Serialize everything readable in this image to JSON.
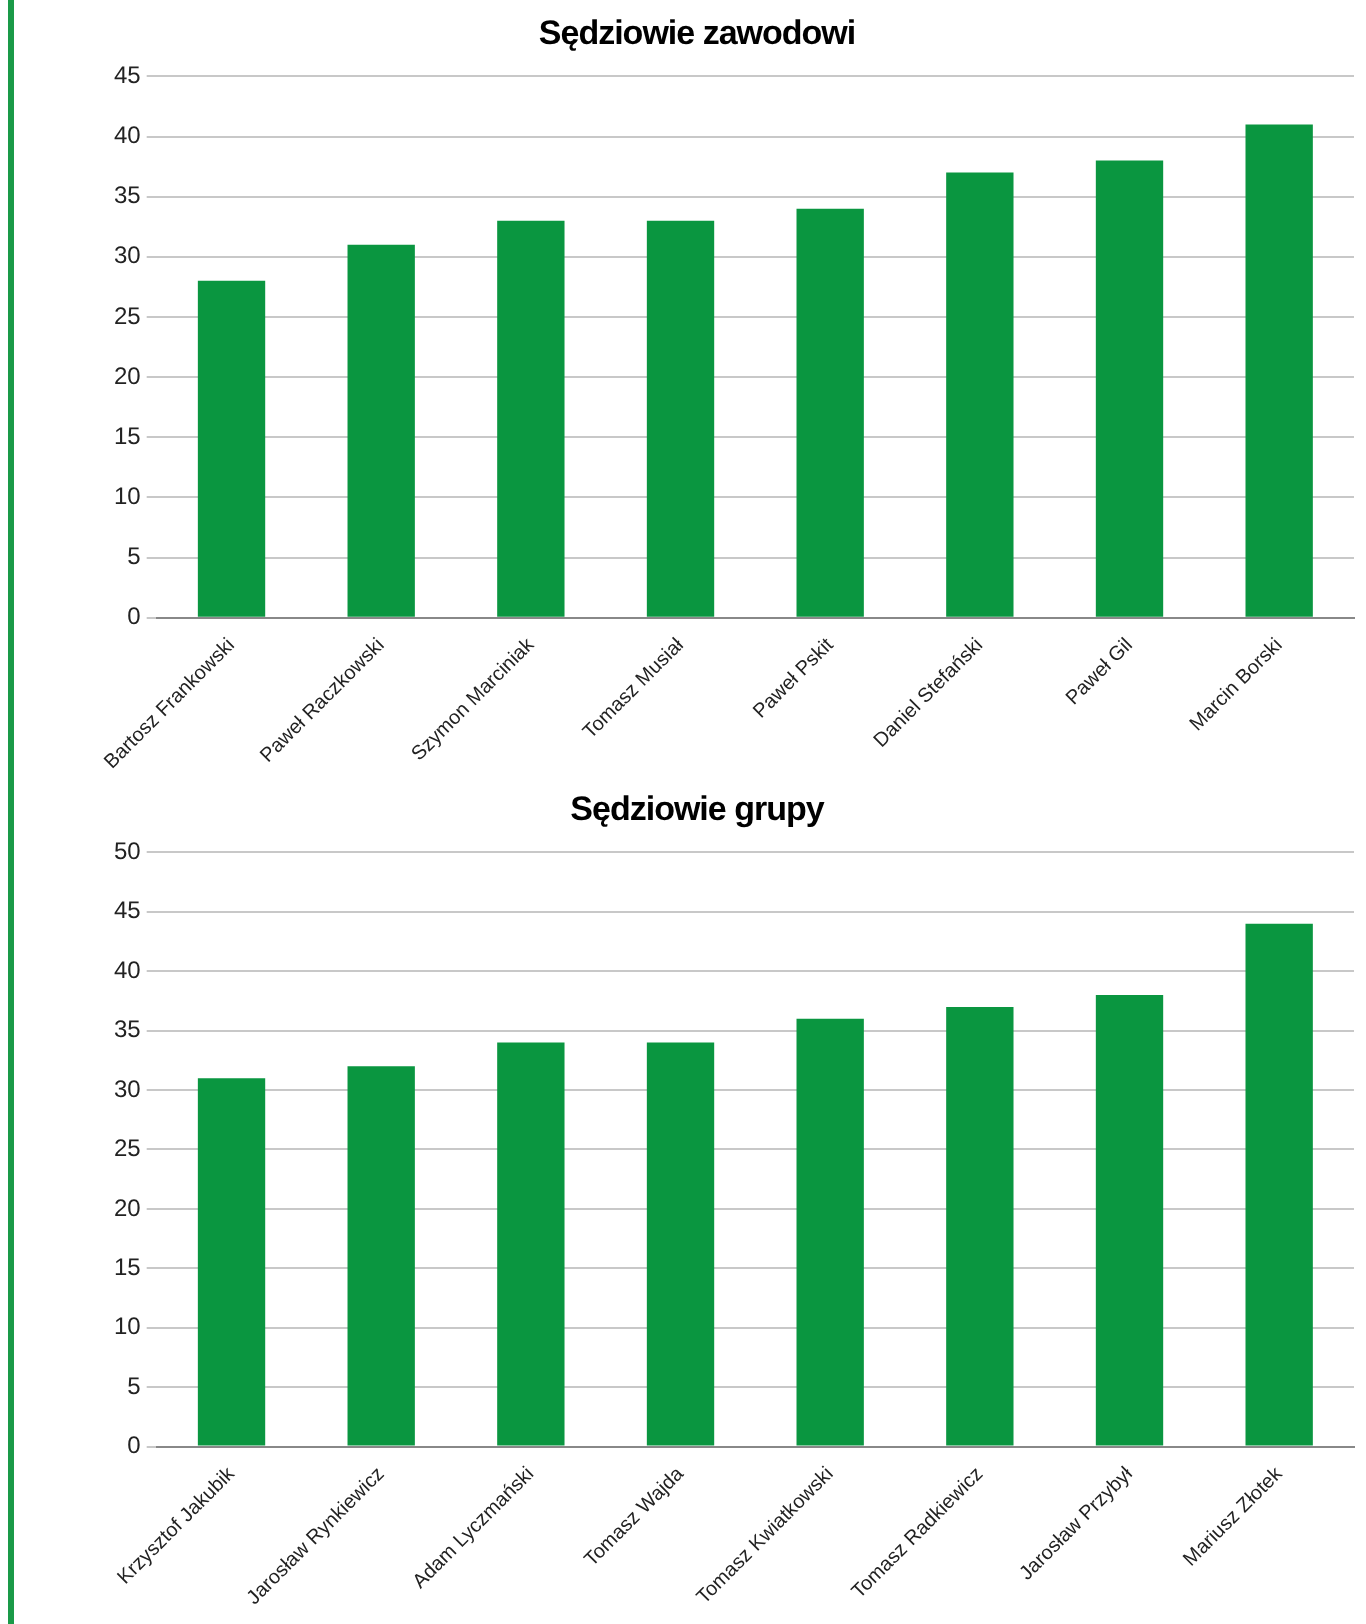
{
  "chart_data": [
    {
      "type": "bar",
      "title": "Sędziowie zawodowi",
      "categories": [
        "Bartosz Frankowski",
        "Paweł Raczkowski",
        "Szymon Marciniak",
        "Tomasz Musiał",
        "Paweł Pskit",
        "Daniel Stefański",
        "Paweł Gil",
        "Marcin Borski"
      ],
      "values": [
        28,
        31,
        33,
        33,
        34,
        37,
        38,
        41
      ],
      "color": "#0a9640",
      "ylim": [
        0,
        45
      ],
      "yticks": [
        0,
        5,
        10,
        15,
        20,
        25,
        30,
        35,
        40,
        45
      ],
      "grid": "y",
      "legend": false
    },
    {
      "type": "bar",
      "title": "Sędziowie grupy",
      "categories": [
        "Krzysztof Jakubik",
        "Jarosław Rynkiewicz",
        "Adam Lyczmański",
        "Tomasz Wajda",
        "Tomasz Kwiatkowski",
        "Tomasz Radkiewicz",
        "Jarosław Przybył",
        "Mariusz Złotek"
      ],
      "values": [
        31,
        32,
        34,
        34,
        36,
        37,
        38,
        44
      ],
      "color": "#0a9640",
      "ylim": [
        0,
        50
      ],
      "yticks": [
        0,
        5,
        10,
        15,
        20,
        25,
        30,
        35,
        40,
        45,
        50
      ],
      "grid": "y",
      "legend": false
    }
  ]
}
